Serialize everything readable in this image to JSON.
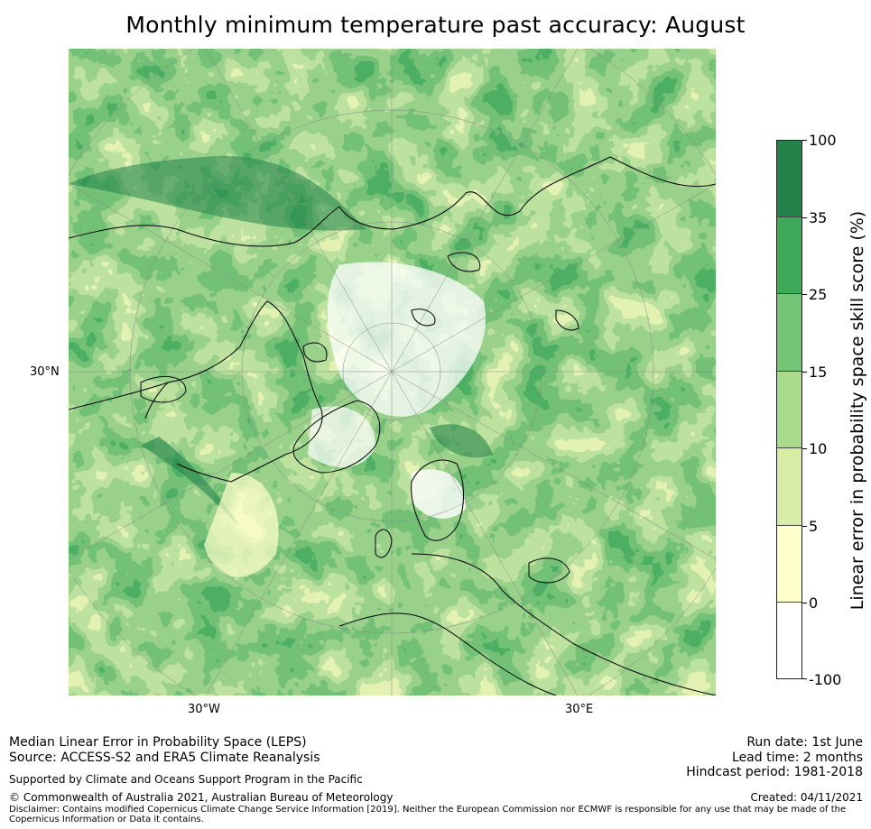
{
  "title": "Monthly minimum temperature past accuracy: August",
  "map": {
    "projection": "north-polar-stereographic",
    "region": "Northern Hemisphere / Arctic",
    "labels": {
      "lat_left": "30°N",
      "lon_left": "30°W",
      "lon_right": "30°E"
    },
    "colors": {
      "land_outline": "#000000",
      "gridline": "#888888"
    }
  },
  "colorbar": {
    "label": "Linear error in probability space skill score (%)",
    "ticks": [
      "100",
      "35",
      "25",
      "15",
      "10",
      "5",
      "0",
      "-100"
    ],
    "colors": [
      "#23834a",
      "#3ea85b",
      "#74c476",
      "#a9d98b",
      "#d7eda5",
      "#ffffcc",
      "#ffffff"
    ]
  },
  "footer": {
    "line1": "Median Linear Error in Probability Space (LEPS)",
    "line2": "Source: ACCESS-S2 and ERA5 Climate Reanalysis",
    "support": "Supported by Climate and Oceans Support Program in the Pacific",
    "copyright": "© Commonwealth of Australia 2021, Australian Bureau of Meteorology",
    "disclaimer": "Disclaimer: Contains modified Copernicus Climate Change Service Information [2019]. Neither the European Commission nor ECMWF is responsible for any use that may be made of the Copernicus Information or Data it contains.",
    "run_date": "Run date: 1st June",
    "lead_time": "Lead time: 2 months",
    "hindcast": "Hindcast period: 1981-2018",
    "created": "Created: 04/11/2021"
  }
}
